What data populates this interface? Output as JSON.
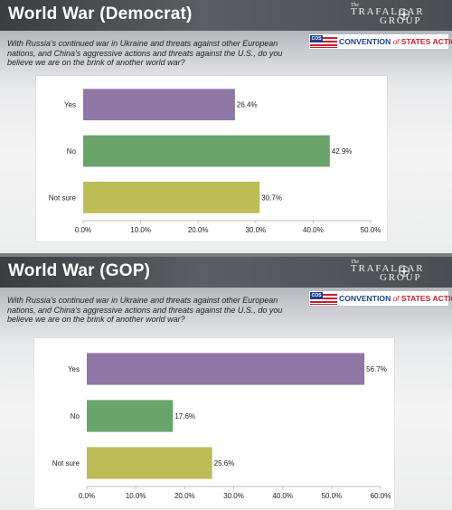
{
  "logo": {
    "the": "The",
    "line1": "TRAFALGAR",
    "line2": "GROUP"
  },
  "cos": {
    "badge": "COS",
    "name_a": "CONVENTION",
    "name_of": "of",
    "name_b": "STATES ACTION"
  },
  "panels": [
    {
      "title": "World War (Democrat)",
      "question": "With Russia's continued war in Ukraine and threats against other European nations, and China's aggressive actions and threats against the U.S., do you believe we are on the brink of another world war?"
    },
    {
      "title": "World War (GOP)",
      "question": "With Russia's continued war in Ukraine and threats against other European nations, and China's aggressive actions and threats against the U.S., do you believe we are on the brink of another world war?"
    }
  ],
  "chart_data": [
    {
      "type": "bar",
      "orientation": "horizontal",
      "title": "World War (Democrat)",
      "categories": [
        "Yes",
        "No",
        "Not sure"
      ],
      "values": [
        26.4,
        42.9,
        30.7
      ],
      "value_labels": [
        "26.4%",
        "42.9%",
        "30.7%"
      ],
      "colors": [
        "#8f77a6",
        "#6aa46a",
        "#bcbd56"
      ],
      "xlim": [
        0,
        50
      ],
      "ticks": [
        0,
        10,
        20,
        30,
        40,
        50
      ],
      "tick_labels": [
        "0.0%",
        "10.0%",
        "20.0%",
        "30.0%",
        "40.0%",
        "50.0%"
      ],
      "grid": false,
      "legend": "none"
    },
    {
      "type": "bar",
      "orientation": "horizontal",
      "title": "World War (GOP)",
      "categories": [
        "Yes",
        "No",
        "Not sure"
      ],
      "values": [
        56.7,
        17.6,
        25.6
      ],
      "value_labels": [
        "56.7%",
        "17.6%",
        "25.6%"
      ],
      "colors": [
        "#8f77a6",
        "#6aa46a",
        "#bcbd56"
      ],
      "xlim": [
        0,
        60
      ],
      "ticks": [
        0,
        10,
        20,
        30,
        40,
        50,
        60
      ],
      "tick_labels": [
        "0.0%",
        "10.0%",
        "20.0%",
        "30.0%",
        "40.0%",
        "50.0%",
        "60.0%"
      ],
      "grid": false,
      "legend": "none"
    }
  ]
}
